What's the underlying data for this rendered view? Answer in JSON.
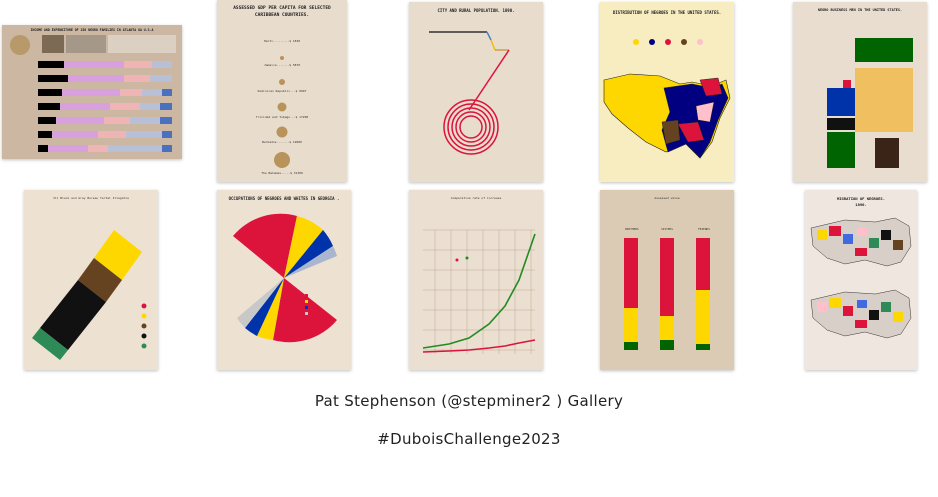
{
  "gallery": {
    "caption": "Pat Stephenson (@stepminer2 ) Gallery",
    "hashtag": "#DuboisChallenge2023"
  },
  "thumbnails": [
    {
      "title": "INCOME AND EXPENDITURE OF 150 NEGRO FAMILIES IN ATLANTA GA U.S.A",
      "background": "#cbb7a2"
    },
    {
      "title": "ASSESSED GDP PER CAPITA FOR SELECTED CARIBBEAN COUNTRIES.",
      "background": "#e8dccd",
      "rows": [
        "Haiti.........$ 1830",
        "Jamaica.......$ 5870",
        "Dominican Republic...$ 9097",
        "Trinidad and Tobago...$ 17200",
        "Barbados.......$ 19000",
        "The Bahamas.....$ 31300"
      ]
    },
    {
      "title": "CITY AND RURAL POPULATION. 1890.",
      "background": "#e8dccd"
    },
    {
      "title": "DISTRIBUTION OF NEGROES IN THE UNITED STATES.",
      "background": "#f7edc0"
    },
    {
      "title": "NEGRO BUSINESS MEN IN THE UNITED STATES.",
      "background": "#e9ddcf"
    },
    {
      "title": "Ill Black and Gray Bureau Tertel Illegible",
      "background": "#ede2d2"
    },
    {
      "title": "OCCUPATIONS OF NEGROES AND WHITES IN GEORGIA .",
      "background": "#ede2d2"
    },
    {
      "title": "Comparative rate of increase",
      "background": "#eadfd0"
    },
    {
      "title": "Assessed value",
      "background": "#dccbb4",
      "bars": [
        "BROTHERS",
        "SISTERS",
        "FRIENDS"
      ]
    },
    {
      "title": "MIGRATION OF NEGROES. 1890.",
      "background": "#efe6df"
    }
  ],
  "colors": {
    "red": "#dc143c",
    "gold": "#ffd700",
    "black": "#111111",
    "green": "#00aa00",
    "brown": "#654321",
    "tan": "#d2b48c",
    "blue": "#0033aa",
    "pink": "#ffc0cb"
  }
}
